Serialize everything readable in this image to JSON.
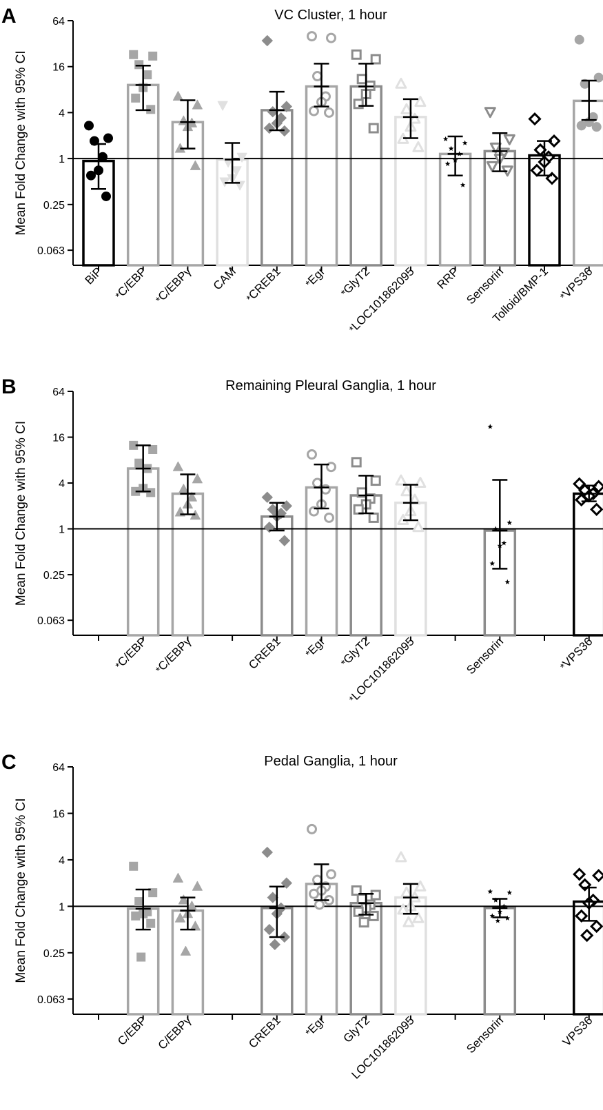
{
  "figure": {
    "y_axis_label": "Mean Fold Change with 95% CI"
  },
  "chart_data": [
    {
      "type": "bar",
      "panel_letter": "A",
      "title": "VC Cluster, 1 hour",
      "ylabel": "Mean Fold Change with 95% CI",
      "yscale": "log2",
      "ylim": [
        0.04,
        64
      ],
      "yticks": [
        64,
        16,
        4,
        1,
        0.25,
        0.063
      ],
      "ytick_labels": [
        "64",
        "16",
        "4",
        "1",
        "0.25",
        "0.063"
      ],
      "reference_line": 1,
      "slots": 12,
      "categories": [
        {
          "label": "BiP",
          "star": false,
          "slot": 0,
          "mean": 0.93,
          "ci": [
            0.4,
            1.55
          ],
          "color": "#000000",
          "marker": "circle",
          "filled": true,
          "points": [
            2.7,
            1.85,
            1.7,
            1.05,
            0.7,
            0.6,
            0.32
          ]
        },
        {
          "label": "C/EBP",
          "star": true,
          "slot": 1,
          "mean": 9.2,
          "ci": [
            4.3,
            16.5
          ],
          "color": "#a6a6a6",
          "marker": "square",
          "filled": true,
          "points": [
            23,
            22,
            17,
            12.5,
            8.5,
            6.2,
            4.4
          ]
        },
        {
          "label": "C/EBPγ",
          "star": true,
          "slot": 2,
          "mean": 3.0,
          "ci": [
            1.35,
            5.8
          ],
          "color": "#a6a6a6",
          "marker": "triangle",
          "filled": true,
          "points": [
            6.5,
            5.0,
            3.1,
            2.9,
            2.6,
            1.35,
            0.8
          ]
        },
        {
          "label": "CAM",
          "star": false,
          "slot": 3,
          "mean": 0.97,
          "ci": [
            0.48,
            1.6
          ],
          "color": "#e0e0e0",
          "marker": "triangle-down",
          "filled": true,
          "points": [
            5.0,
            1.05,
            0.9,
            0.7,
            0.55,
            0.5,
            0.45
          ]
        },
        {
          "label": "CREB1",
          "star": true,
          "slot": 4,
          "mean": 4.3,
          "ci": [
            2.35,
            7.5
          ],
          "color": "#8c8c8c",
          "marker": "diamond",
          "filled": true,
          "points": [
            35,
            4.8,
            4.1,
            3.4,
            2.9,
            2.5,
            2.3
          ]
        },
        {
          "label": "Egr",
          "star": true,
          "slot": 5,
          "mean": 8.8,
          "ci": [
            4.8,
            17.5
          ],
          "color": "#a6a6a6",
          "marker": "circle",
          "filled": false,
          "points": [
            40,
            38,
            12,
            6.5,
            5.5,
            4.2,
            4.0
          ]
        },
        {
          "label": "GlyT2",
          "star": true,
          "slot": 6,
          "mean": 8.8,
          "ci": [
            4.9,
            17.5
          ],
          "color": "#8c8c8c",
          "marker": "square",
          "filled": false,
          "points": [
            23,
            20,
            11,
            9,
            7,
            5.2,
            2.5
          ]
        },
        {
          "label": "LOC101862095",
          "star": true,
          "slot": 7,
          "mean": 3.5,
          "ci": [
            1.85,
            6.0
          ],
          "color": "#e0e0e0",
          "marker": "triangle",
          "filled": false,
          "points": [
            9.5,
            5.5,
            4.4,
            3.3,
            2.6,
            1.8,
            1.4
          ]
        },
        {
          "label": "RRP",
          "star": false,
          "slot": 8,
          "mean": 1.15,
          "ci": [
            0.6,
            1.95
          ],
          "color": "#a6a6a6",
          "marker": "star",
          "filled": true,
          "points": [
            1.8,
            1.6,
            1.35,
            1.15,
            0.95,
            0.85,
            0.45
          ]
        },
        {
          "label": "Sensorin",
          "star": false,
          "slot": 9,
          "mean": 1.25,
          "ci": [
            0.68,
            2.15
          ],
          "color": "#8c8c8c",
          "marker": "triangle-down",
          "filled": false,
          "points": [
            4.1,
            1.8,
            1.4,
            1.2,
            1.0,
            0.8,
            0.7
          ]
        },
        {
          "label": "Tolloid/BMP-1",
          "star": false,
          "slot": 10,
          "mean": 1.1,
          "ci": [
            0.6,
            1.7
          ],
          "color": "#000000",
          "marker": "diamond",
          "filled": false,
          "points": [
            3.3,
            1.7,
            1.3,
            1.05,
            0.9,
            0.7,
            0.55
          ]
        },
        {
          "label": "VPS36",
          "star": true,
          "slot": 11,
          "mean": 5.7,
          "ci": [
            3.2,
            10.5
          ],
          "color": "#a6a6a6",
          "marker": "circle",
          "filled": true,
          "points": [
            36,
            11.5,
            9.5,
            3.5,
            3.0,
            2.7,
            2.6
          ]
        }
      ]
    },
    {
      "type": "bar",
      "panel_letter": "B",
      "title": "Remaining Pleural  Ganglia, 1 hour",
      "ylabel": "Mean Fold Change with 95% CI",
      "yscale": "log2",
      "ylim": [
        0.04,
        64
      ],
      "yticks": [
        64,
        16,
        4,
        1,
        0.25,
        0.063
      ],
      "ytick_labels": [
        "64",
        "16",
        "4",
        "1",
        "0.25",
        "0.063"
      ],
      "reference_line": 1,
      "slots": 12,
      "categories": [
        {
          "label": "C/EBP",
          "star": true,
          "slot": 1,
          "mean": 6.2,
          "ci": [
            3.1,
            12.5
          ],
          "color": "#a6a6a6",
          "marker": "square",
          "filled": true,
          "points": [
            12.5,
            11,
            7.3,
            6.2,
            3.4,
            3.1,
            3.0
          ]
        },
        {
          "label": "C/EBPγ",
          "star": true,
          "slot": 2,
          "mean": 2.9,
          "ci": [
            1.55,
            5.2
          ],
          "color": "#a6a6a6",
          "marker": "triangle",
          "filled": true,
          "points": [
            6.5,
            4.5,
            3.3,
            2.6,
            2.1,
            1.65,
            1.5
          ]
        },
        {
          "label": "CREB1",
          "star": false,
          "slot": 4,
          "mean": 1.45,
          "ci": [
            0.95,
            2.2
          ],
          "color": "#8c8c8c",
          "marker": "diamond",
          "filled": true,
          "points": [
            2.6,
            2.0,
            1.8,
            1.6,
            1.45,
            1.05,
            0.7
          ]
        },
        {
          "label": "Egr",
          "star": true,
          "slot": 5,
          "mean": 3.5,
          "ci": [
            1.85,
            7.0
          ],
          "color": "#a6a6a6",
          "marker": "circle",
          "filled": false,
          "points": [
            9.5,
            6.5,
            4.0,
            3.3,
            2.1,
            1.7,
            1.4
          ]
        },
        {
          "label": "GlyT2",
          "star": true,
          "slot": 6,
          "mean": 2.75,
          "ci": [
            1.6,
            5.0
          ],
          "color": "#8c8c8c",
          "marker": "square",
          "filled": false,
          "points": [
            7.5,
            4.3,
            3.0,
            2.5,
            2.1,
            1.8,
            1.4
          ]
        },
        {
          "label": "LOC101862095",
          "star": true,
          "slot": 7,
          "mean": 2.2,
          "ci": [
            1.3,
            3.8
          ],
          "color": "#e0e0e0",
          "marker": "triangle",
          "filled": false,
          "points": [
            4.3,
            4.0,
            3.1,
            2.4,
            1.7,
            1.3,
            1.05
          ]
        },
        {
          "label": "Sensorin",
          "star": false,
          "slot": 9,
          "mean": 0.95,
          "ci": [
            0.3,
            4.4
          ],
          "color": "#8c8c8c",
          "marker": "star",
          "filled": true,
          "points": [
            22,
            1.2,
            1.0,
            0.65,
            0.6,
            0.35,
            0.2
          ]
        },
        {
          "label": "VPS36",
          "star": true,
          "slot": 11,
          "mean": 2.9,
          "ci": [
            2.3,
            3.7
          ],
          "color": "#000000",
          "marker": "diamond",
          "filled": false,
          "points": [
            3.9,
            3.6,
            3.2,
            2.9,
            2.7,
            2.4,
            1.8
          ]
        }
      ]
    },
    {
      "type": "bar",
      "panel_letter": "C",
      "title": "Pedal  Ganglia, 1 hour",
      "ylabel": "Mean Fold Change with 95% CI",
      "yscale": "log2",
      "ylim": [
        0.04,
        64
      ],
      "yticks": [
        64,
        16,
        4,
        1,
        0.25,
        0.063
      ],
      "ytick_labels": [
        "64",
        "16",
        "4",
        "1",
        "0.25",
        "0.063"
      ],
      "reference_line": 1,
      "slots": 12,
      "categories": [
        {
          "label": "C/EBP",
          "star": false,
          "slot": 1,
          "mean": 0.93,
          "ci": [
            0.5,
            1.65
          ],
          "color": "#a6a6a6",
          "marker": "square",
          "filled": true,
          "points": [
            3.3,
            1.5,
            1.15,
            0.85,
            0.8,
            0.75,
            0.6,
            0.22
          ]
        },
        {
          "label": "C/EBPγ",
          "star": false,
          "slot": 2,
          "mean": 0.88,
          "ci": [
            0.5,
            1.3
          ],
          "color": "#a6a6a6",
          "marker": "triangle",
          "filled": true,
          "points": [
            2.3,
            1.8,
            1.2,
            1.0,
            0.8,
            0.7,
            0.55,
            0.26
          ]
        },
        {
          "label": "CREB1",
          "star": false,
          "slot": 4,
          "mean": 0.95,
          "ci": [
            0.4,
            1.8
          ],
          "color": "#8c8c8c",
          "marker": "diamond",
          "filled": true,
          "points": [
            5.0,
            2.0,
            1.3,
            0.95,
            0.8,
            0.5,
            0.4,
            0.32
          ]
        },
        {
          "label": "Egr",
          "star": true,
          "slot": 5,
          "mean": 1.95,
          "ci": [
            1.2,
            3.5
          ],
          "color": "#a6a6a6",
          "marker": "circle",
          "filled": false,
          "points": [
            10,
            2.6,
            2.2,
            1.8,
            1.6,
            1.45,
            1.2,
            1.05
          ]
        },
        {
          "label": "GlyT2",
          "star": false,
          "slot": 6,
          "mean": 1.1,
          "ci": [
            0.78,
            1.45
          ],
          "color": "#8c8c8c",
          "marker": "square",
          "filled": false,
          "points": [
            1.6,
            1.4,
            1.25,
            1.05,
            0.95,
            0.85,
            0.75,
            0.62
          ]
        },
        {
          "label": "LOC101862095",
          "star": false,
          "slot": 7,
          "mean": 1.3,
          "ci": [
            0.8,
            1.95
          ],
          "color": "#e0e0e0",
          "marker": "triangle",
          "filled": false,
          "points": [
            4.3,
            1.8,
            1.5,
            1.3,
            1.0,
            0.9,
            0.7,
            0.62
          ]
        },
        {
          "label": "Sensorin",
          "star": false,
          "slot": 9,
          "mean": 0.95,
          "ci": [
            0.72,
            1.25
          ],
          "color": "#8c8c8c",
          "marker": "star",
          "filled": true,
          "points": [
            1.55,
            1.5,
            1.2,
            1.0,
            0.85,
            0.75,
            0.7,
            0.65
          ]
        },
        {
          "label": "VPS36",
          "star": false,
          "slot": 11,
          "mean": 1.15,
          "ci": [
            0.65,
            1.75
          ],
          "color": "#000000",
          "marker": "diamond",
          "filled": false,
          "points": [
            2.6,
            2.5,
            1.9,
            1.2,
            1.1,
            0.75,
            0.55,
            0.42
          ]
        }
      ]
    }
  ]
}
